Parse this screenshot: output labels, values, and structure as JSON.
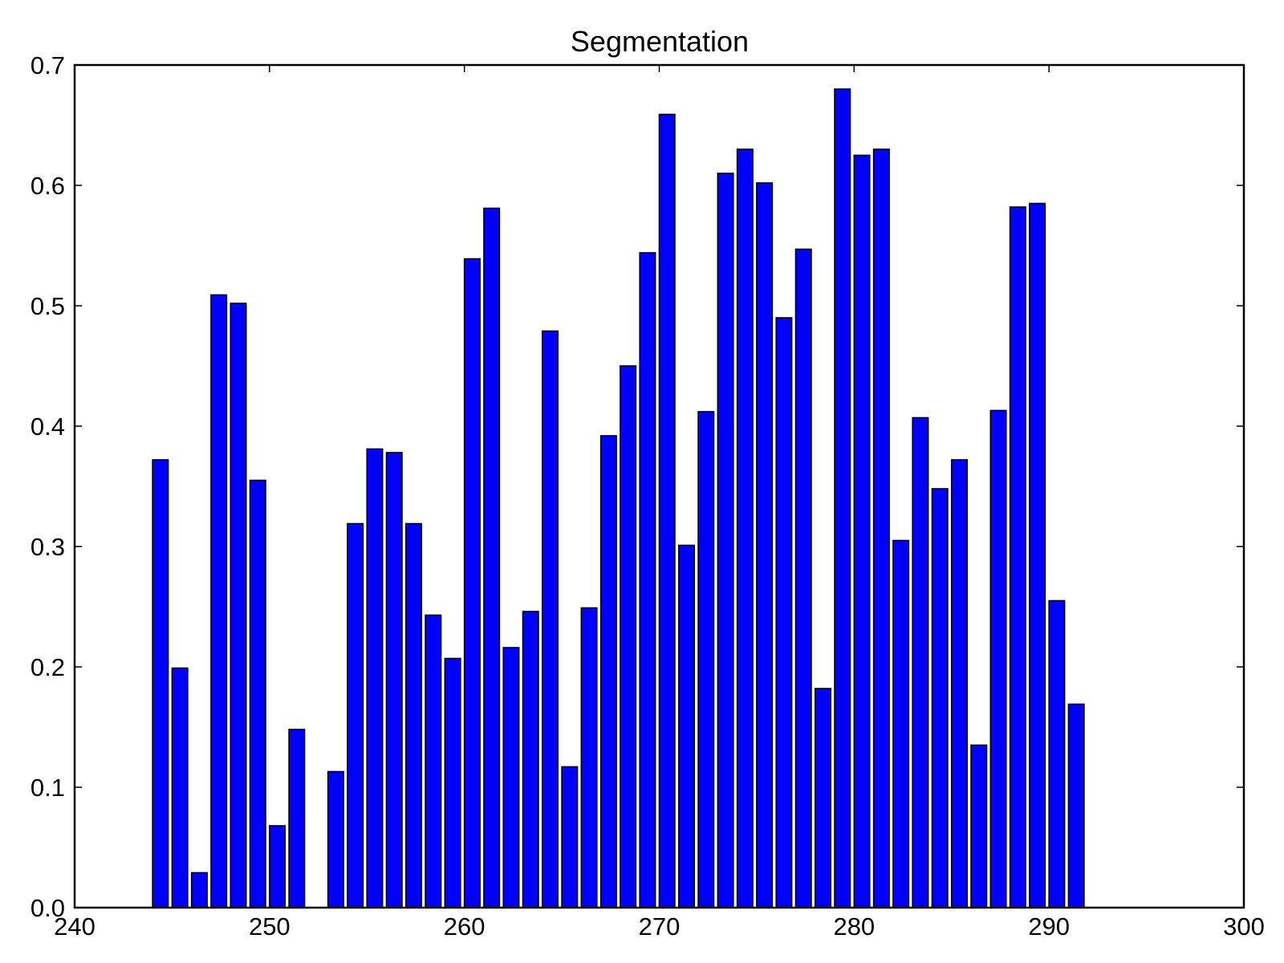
{
  "chart_data": {
    "type": "bar",
    "title": "Segmentation",
    "xlabel": "",
    "ylabel": "",
    "xlim": [
      240,
      300
    ],
    "ylim": [
      0.0,
      0.7
    ],
    "x_ticks": [
      "240",
      "250",
      "260",
      "270",
      "280",
      "290",
      "300"
    ],
    "y_ticks": [
      "0.0",
      "0.1",
      "0.2",
      "0.3",
      "0.4",
      "0.5",
      "0.6",
      "0.7"
    ],
    "bar_color": "#0000ff",
    "edge_color": "#000000",
    "grid": false,
    "x": [
      244,
      245,
      246,
      247,
      248,
      249,
      250,
      251,
      252,
      253,
      254,
      255,
      256,
      257,
      258,
      259,
      260,
      261,
      262,
      263,
      264,
      265,
      266,
      267,
      268,
      269,
      270,
      271,
      272,
      273,
      274,
      275,
      276,
      277,
      278,
      279,
      280,
      281,
      282,
      283,
      284,
      285,
      286,
      287,
      288,
      289,
      290,
      291
    ],
    "values": [
      0.372,
      0.199,
      0.029,
      0.509,
      0.502,
      0.355,
      0.068,
      0.148,
      0.0,
      0.113,
      0.319,
      0.381,
      0.378,
      0.319,
      0.243,
      0.207,
      0.539,
      0.581,
      0.216,
      0.246,
      0.479,
      0.117,
      0.249,
      0.392,
      0.45,
      0.544,
      0.659,
      0.301,
      0.412,
      0.61,
      0.63,
      0.602,
      0.49,
      0.547,
      0.182,
      0.68,
      0.625,
      0.63,
      0.305,
      0.407,
      0.348,
      0.372,
      0.135,
      0.413,
      0.582,
      0.585,
      0.255,
      0.169
    ]
  }
}
